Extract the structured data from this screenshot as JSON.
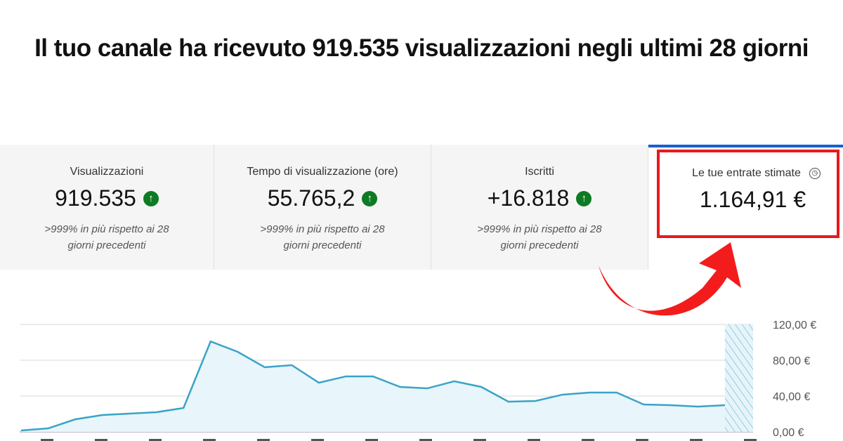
{
  "headline": "Il tuo canale ha ricevuto 919.535 visualizzazioni negli ultimi 28 giorni",
  "cards": [
    {
      "label": "Visualizzazioni",
      "value": "919.535",
      "trend": "up",
      "note": ">999% in più rispetto ai 28 giorni precedenti"
    },
    {
      "label": "Tempo di visualizzazione (ore)",
      "value": "55.765,2",
      "trend": "up",
      "note": ">999% in più rispetto ai 28 giorni precedenti"
    },
    {
      "label": "Iscritti",
      "value": "+16.818",
      "trend": "up",
      "note": ">999% in più rispetto ai 28 giorni precedenti"
    },
    {
      "label": "Le tue entrate stimate",
      "value": "1.164,91 €",
      "icon": "clock-icon",
      "selected": true
    }
  ],
  "colors": {
    "accent": "#1a5fd0",
    "highlight": "#e8191b",
    "line": "#3aa3c8",
    "up": "#0d7b24"
  },
  "chart_data": {
    "type": "area",
    "y_ticks": [
      "0,00 €",
      "40,00 €",
      "80,00 €",
      "120,00 €"
    ],
    "ylim": [
      0,
      120
    ],
    "grid": true,
    "values": [
      1.6,
      3.9,
      14,
      18.8,
      20.4,
      22,
      26.7,
      101,
      89.4,
      72.2,
      74.5,
      54.9,
      62,
      62,
      50.2,
      48.6,
      56.5,
      50.2,
      33.7,
      34.5,
      41.6,
      43.9,
      43.9,
      30.6,
      29.8,
      28.2,
      29.8
    ]
  }
}
